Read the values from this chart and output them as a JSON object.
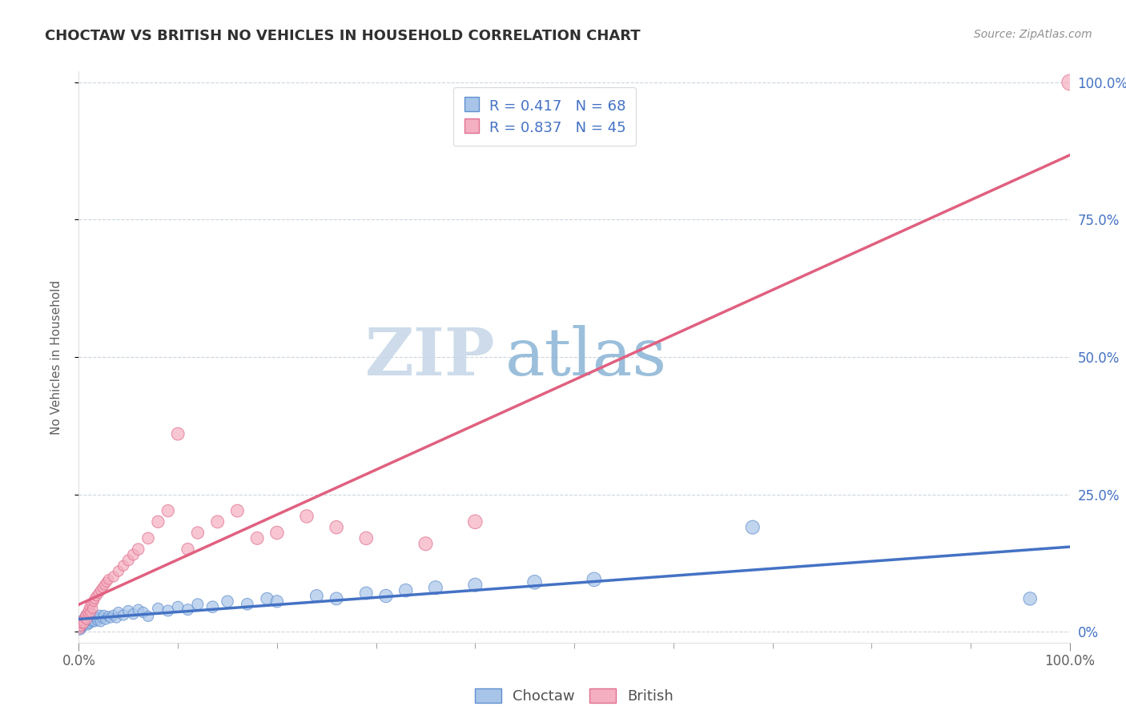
{
  "title": "CHOCTAW VS BRITISH NO VEHICLES IN HOUSEHOLD CORRELATION CHART",
  "source_text": "Source: ZipAtlas.com",
  "ylabel": "No Vehicles in Household",
  "choctaw_label": "Choctaw",
  "british_label": "British",
  "choctaw_R": 0.417,
  "choctaw_N": 68,
  "british_R": 0.837,
  "british_N": 45,
  "choctaw_color": "#a8c4e8",
  "british_color": "#f4afc0",
  "choctaw_edge_color": "#6090d0",
  "british_edge_color": "#e07090",
  "choctaw_line_color": "#4472c4",
  "british_line_color": "#e06080",
  "background_color": "#ffffff",
  "grid_color": "#c0ccd8",
  "watermark_zip": "ZIP",
  "watermark_atlas": "atlas",
  "watermark_zip_color": "#c8d8e8",
  "watermark_atlas_color": "#90b8d8",
  "title_color": "#303030",
  "source_color": "#909090",
  "legend_color": "#4472c4",
  "right_tick_color": "#4472c4",
  "choctaw_x": [
    0.001,
    0.002,
    0.002,
    0.003,
    0.003,
    0.004,
    0.004,
    0.005,
    0.005,
    0.006,
    0.006,
    0.007,
    0.007,
    0.008,
    0.008,
    0.009,
    0.009,
    0.01,
    0.01,
    0.011,
    0.011,
    0.012,
    0.013,
    0.014,
    0.015,
    0.015,
    0.016,
    0.017,
    0.018,
    0.019,
    0.02,
    0.021,
    0.022,
    0.024,
    0.025,
    0.027,
    0.03,
    0.032,
    0.035,
    0.038,
    0.04,
    0.045,
    0.05,
    0.055,
    0.06,
    0.065,
    0.07,
    0.08,
    0.09,
    0.1,
    0.11,
    0.12,
    0.135,
    0.15,
    0.17,
    0.19,
    0.2,
    0.24,
    0.26,
    0.29,
    0.31,
    0.33,
    0.36,
    0.4,
    0.46,
    0.52,
    0.68,
    0.96
  ],
  "choctaw_y": [
    0.005,
    0.008,
    0.012,
    0.01,
    0.018,
    0.015,
    0.022,
    0.012,
    0.02,
    0.015,
    0.025,
    0.018,
    0.03,
    0.015,
    0.022,
    0.012,
    0.025,
    0.018,
    0.028,
    0.015,
    0.02,
    0.025,
    0.02,
    0.018,
    0.022,
    0.03,
    0.018,
    0.025,
    0.022,
    0.02,
    0.025,
    0.03,
    0.018,
    0.025,
    0.03,
    0.022,
    0.028,
    0.025,
    0.03,
    0.025,
    0.035,
    0.03,
    0.038,
    0.032,
    0.04,
    0.035,
    0.028,
    0.042,
    0.038,
    0.045,
    0.04,
    0.05,
    0.045,
    0.055,
    0.05,
    0.06,
    0.055,
    0.065,
    0.06,
    0.07,
    0.065,
    0.075,
    0.08,
    0.085,
    0.09,
    0.095,
    0.19,
    0.06
  ],
  "british_x": [
    0.001,
    0.002,
    0.003,
    0.004,
    0.005,
    0.006,
    0.007,
    0.008,
    0.009,
    0.01,
    0.011,
    0.012,
    0.013,
    0.014,
    0.015,
    0.016,
    0.018,
    0.02,
    0.022,
    0.024,
    0.026,
    0.028,
    0.03,
    0.035,
    0.04,
    0.045,
    0.05,
    0.055,
    0.06,
    0.07,
    0.08,
    0.09,
    0.1,
    0.11,
    0.12,
    0.14,
    0.16,
    0.18,
    0.2,
    0.23,
    0.26,
    0.29,
    0.35,
    0.4,
    1.0
  ],
  "british_y": [
    0.005,
    0.01,
    0.015,
    0.02,
    0.015,
    0.025,
    0.03,
    0.022,
    0.035,
    0.04,
    0.045,
    0.035,
    0.05,
    0.042,
    0.055,
    0.06,
    0.065,
    0.07,
    0.075,
    0.08,
    0.085,
    0.09,
    0.095,
    0.1,
    0.11,
    0.12,
    0.13,
    0.14,
    0.15,
    0.17,
    0.2,
    0.22,
    0.36,
    0.15,
    0.18,
    0.2,
    0.22,
    0.17,
    0.18,
    0.21,
    0.19,
    0.17,
    0.16,
    0.2,
    1.0
  ],
  "choctaw_sizes": [
    120,
    100,
    90,
    100,
    80,
    90,
    80,
    90,
    80,
    90,
    80,
    90,
    80,
    90,
    80,
    80,
    80,
    80,
    80,
    80,
    80,
    80,
    80,
    80,
    80,
    80,
    80,
    80,
    80,
    80,
    80,
    80,
    80,
    80,
    80,
    80,
    80,
    80,
    80,
    80,
    90,
    90,
    90,
    90,
    90,
    90,
    90,
    100,
    100,
    100,
    100,
    100,
    110,
    110,
    110,
    120,
    120,
    130,
    130,
    130,
    140,
    140,
    150,
    150,
    160,
    160,
    150,
    140
  ],
  "british_sizes": [
    80,
    80,
    80,
    80,
    80,
    80,
    80,
    80,
    80,
    80,
    80,
    80,
    80,
    80,
    80,
    80,
    80,
    80,
    80,
    80,
    80,
    80,
    80,
    90,
    90,
    90,
    100,
    100,
    110,
    110,
    120,
    120,
    130,
    120,
    120,
    130,
    130,
    130,
    140,
    140,
    140,
    140,
    150,
    160,
    200
  ],
  "xlim": [
    0.0,
    1.0
  ],
  "ylim": [
    0.0,
    1.0
  ],
  "yticks": [
    0.0,
    0.25,
    0.5,
    0.75,
    1.0
  ],
  "ytick_labels_right": [
    "0%",
    "25.0%",
    "50.0%",
    "75.0%",
    "100.0%"
  ],
  "xticks_minor": [
    0.1,
    0.2,
    0.3,
    0.4,
    0.5,
    0.6,
    0.7,
    0.8,
    0.9
  ]
}
